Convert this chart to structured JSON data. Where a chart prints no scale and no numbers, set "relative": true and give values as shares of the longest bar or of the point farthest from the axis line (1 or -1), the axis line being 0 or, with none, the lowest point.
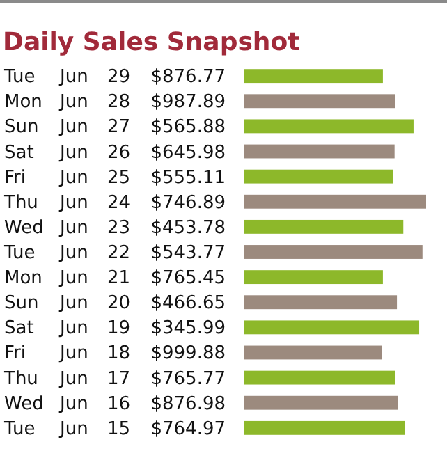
{
  "chart_data": {
    "type": "bar",
    "orientation": "horizontal",
    "relative": true,
    "title": "Daily Sales Snapshot",
    "categories": [
      "Tue Jun 29 $876.77",
      "Mon Jun 28 $987.89",
      "Sun Jun 27 $565.88",
      "Sat Jun 26 $645.98",
      "Fri Jun 25 $555.11",
      "Thu Jun 24 $746.89",
      "Wed Jun 23 $453.78",
      "Tue Jun 22 $543.77",
      "Mon Jun 21 $765.45",
      "Sun Jun 20 $466.65",
      "Sat Jun 19 $345.99",
      "Fri Jun 18 $999.88",
      "Thu Jun 17 $765.77",
      "Wed Jun 16 $876.98",
      "Tue Jun 15 $764.97"
    ],
    "values": [
      0.763,
      0.832,
      0.931,
      0.827,
      0.817,
      1,
      0.875,
      0.98,
      0.763,
      0.84,
      0.962,
      0.756,
      0.832,
      0.847,
      0.885
    ],
    "colors": [
      "#8db82a",
      "#9c8a7e",
      "#8db82a",
      "#9c8a7e",
      "#8db82a",
      "#9c8a7e",
      "#8db82a",
      "#9c8a7e",
      "#8db82a",
      "#9c8a7e",
      "#8db82a",
      "#9c8a7e",
      "#8db82a",
      "#9c8a7e",
      "#8db82a"
    ]
  }
}
